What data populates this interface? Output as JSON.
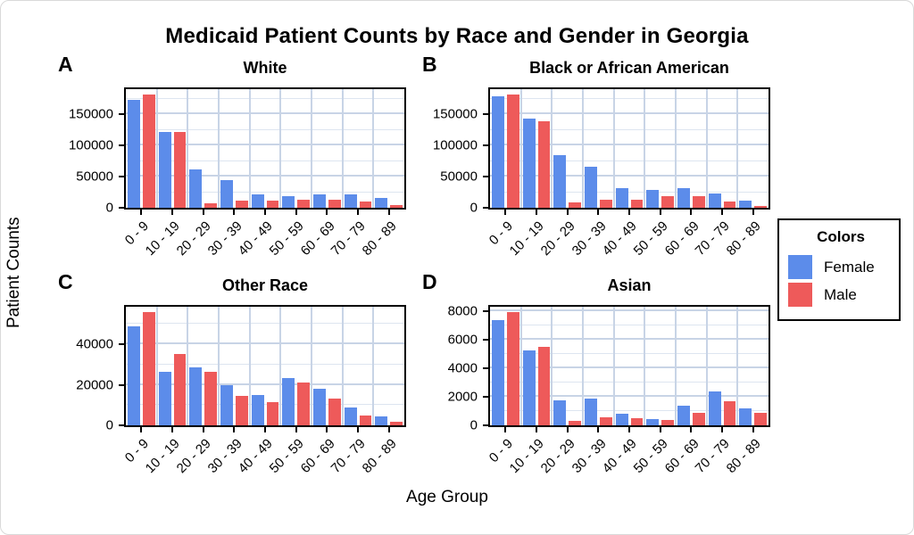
{
  "page": {
    "title": "Medicaid Patient Counts by Race and Gender in Georgia",
    "xlabel": "Age Group",
    "ylabel": "Patient Counts"
  },
  "legend": {
    "title": "Colors",
    "items": [
      {
        "label": "Female",
        "color": "#5C8CEA"
      },
      {
        "label": "Male",
        "color": "#EE5A5A"
      }
    ]
  },
  "chart_data": [
    {
      "type": "bar",
      "panel_label": "A",
      "title": "White",
      "categories": [
        "0 - 9",
        "10 - 19",
        "20 - 29",
        "30 - 39",
        "40 - 49",
        "50 - 59",
        "60 - 69",
        "70 - 79",
        "80 - 89"
      ],
      "series": [
        {
          "name": "Female",
          "color": "#5C8CEA",
          "values": [
            173000,
            122000,
            62000,
            45000,
            22000,
            18000,
            22000,
            21000,
            16000
          ]
        },
        {
          "name": "Male",
          "color": "#EE5A5A",
          "values": [
            181000,
            121000,
            7500,
            11500,
            12000,
            13000,
            13500,
            10500,
            5000
          ]
        }
      ],
      "xlabel": "Age Group",
      "ylabel": "Patient Counts",
      "ylim": [
        0,
        190000
      ],
      "yticks": [
        0,
        50000,
        100000,
        150000
      ],
      "minor_step": 25000,
      "grid": true,
      "legend_position": "right"
    },
    {
      "type": "bar",
      "panel_label": "B",
      "title": "Black or African American",
      "categories": [
        "0 - 9",
        "10 - 19",
        "20 - 29",
        "30 - 39",
        "40 - 49",
        "50 - 59",
        "60 - 69",
        "70 - 79",
        "80 - 89"
      ],
      "series": [
        {
          "name": "Female",
          "color": "#5C8CEA",
          "values": [
            179000,
            143000,
            84000,
            66000,
            32000,
            29000,
            31000,
            23000,
            12000
          ]
        },
        {
          "name": "Male",
          "color": "#EE5A5A",
          "values": [
            181000,
            139000,
            9000,
            12500,
            12500,
            19000,
            19000,
            10500,
            3500
          ]
        }
      ],
      "xlabel": "Age Group",
      "ylabel": "Patient Counts",
      "ylim": [
        0,
        190000
      ],
      "yticks": [
        0,
        50000,
        100000,
        150000
      ],
      "minor_step": 25000,
      "grid": true,
      "legend_position": "right"
    },
    {
      "type": "bar",
      "panel_label": "C",
      "title": "Other Race",
      "categories": [
        "0 - 9",
        "10 - 19",
        "20 - 29",
        "30 - 39",
        "40 - 49",
        "50 - 59",
        "60 - 69",
        "70 - 79",
        "80 - 89"
      ],
      "series": [
        {
          "name": "Female",
          "color": "#5C8CEA",
          "values": [
            49000,
            26500,
            28500,
            20000,
            15000,
            23500,
            18000,
            9000,
            4200
          ]
        },
        {
          "name": "Male",
          "color": "#EE5A5A",
          "values": [
            56000,
            35000,
            26500,
            14500,
            11500,
            21000,
            13000,
            5000,
            1700
          ]
        }
      ],
      "xlabel": "Age Group",
      "ylabel": "Patient Counts",
      "ylim": [
        0,
        58500
      ],
      "yticks": [
        0,
        20000,
        40000
      ],
      "minor_step": 10000,
      "grid": true,
      "legend_position": "right"
    },
    {
      "type": "bar",
      "panel_label": "D",
      "title": "Asian",
      "categories": [
        "0 - 9",
        "10 - 19",
        "20 - 29",
        "30 - 39",
        "40 - 49",
        "50 - 59",
        "60 - 69",
        "70 - 79",
        "80 - 89"
      ],
      "series": [
        {
          "name": "Female",
          "color": "#5C8CEA",
          "values": [
            7350,
            5250,
            1750,
            1900,
            800,
            420,
            1350,
            2400,
            1200
          ]
        },
        {
          "name": "Male",
          "color": "#EE5A5A",
          "values": [
            7900,
            5500,
            300,
            550,
            480,
            370,
            850,
            1700,
            850
          ]
        }
      ],
      "xlabel": "Age Group",
      "ylabel": "Patient Counts",
      "ylim": [
        0,
        8300
      ],
      "yticks": [
        0,
        2000,
        4000,
        6000,
        8000
      ],
      "minor_step": 1000,
      "grid": true,
      "legend_position": "right"
    }
  ]
}
